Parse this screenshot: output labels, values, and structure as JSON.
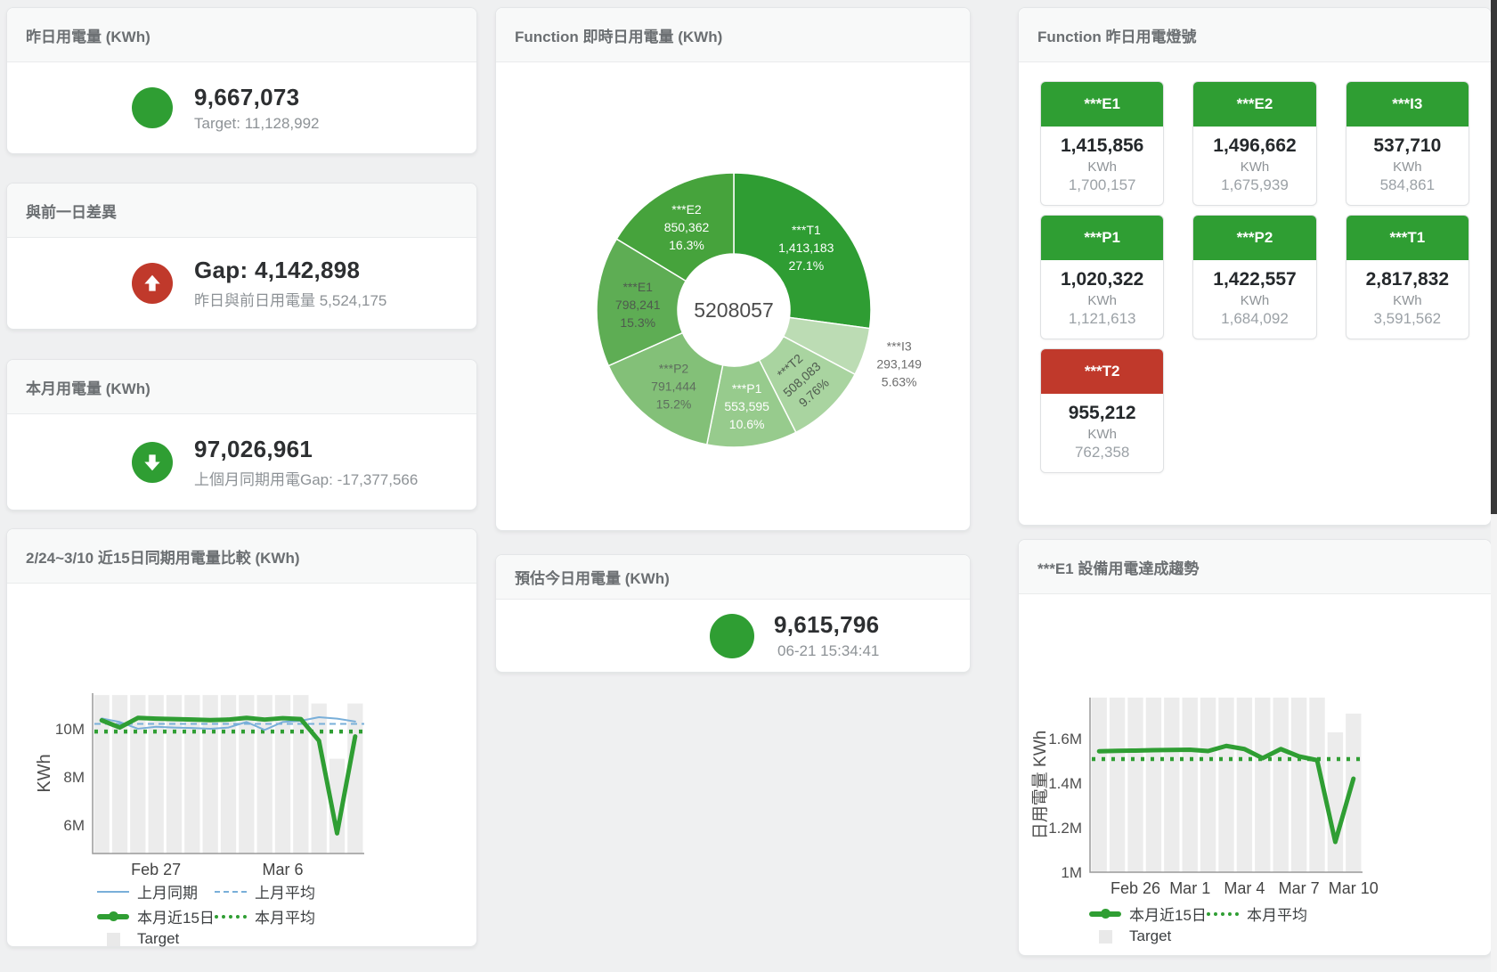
{
  "colors": {
    "green": "#2f9e33",
    "red": "#c0392b",
    "blue": "#79afd9",
    "bar_gray": "#ececec"
  },
  "kpis": {
    "yesterday": {
      "title": "昨日用電量 (KWh)",
      "value": "9,667,073",
      "subtitle": "Target: 11,128,992",
      "icon": "green-circle"
    },
    "diff": {
      "title": "與前一日差異",
      "value": "Gap: 4,142,898",
      "subtitle": "昨日與前日用電量 5,524,175",
      "icon": "red-circle-arrow-up"
    },
    "month": {
      "title": "本月用電量 (KWh)",
      "value": "97,026,961",
      "subtitle": "上個月同期用電Gap: -17,377,566",
      "icon": "green-circle-arrow-down"
    },
    "today_estimate": {
      "title": "預估今日用電量 (KWh)",
      "value": "9,615,796",
      "subtitle": "06-21 15:34:41",
      "icon": "green-circle"
    }
  },
  "lights_panel": {
    "title": "Function 昨日用電燈號",
    "unit": "KWh",
    "items": [
      {
        "label": "***E1",
        "value": "1,415,856",
        "target": "1,700,157",
        "status": "ok"
      },
      {
        "label": "***E2",
        "value": "1,496,662",
        "target": "1,675,939",
        "status": "ok"
      },
      {
        "label": "***I3",
        "value": "537,710",
        "target": "584,861",
        "status": "ok"
      },
      {
        "label": "***P1",
        "value": "1,020,322",
        "target": "1,121,613",
        "status": "ok"
      },
      {
        "label": "***P2",
        "value": "1,422,557",
        "target": "1,684,092",
        "status": "ok"
      },
      {
        "label": "***T1",
        "value": "2,817,832",
        "target": "3,591,562",
        "status": "ok"
      },
      {
        "label": "***T2",
        "value": "955,212",
        "target": "762,358",
        "status": "alert"
      }
    ]
  },
  "chart_data": [
    {
      "type": "pie",
      "title": "Function 即時日用電量 (KWh)",
      "center_label": "5208057",
      "center_total": 5208057,
      "slices": [
        {
          "name": "***T1",
          "value": 1413183,
          "value_label": "1,413,183",
          "pct_label": "27.1%",
          "color": "#2f9d33",
          "label_color": "#ffffff"
        },
        {
          "name": "***I3",
          "value": 293149,
          "value_label": "293,149",
          "pct_label": "5.63%",
          "color": "#bcdcb4",
          "label_color": "#6d6d6d",
          "outside": true
        },
        {
          "name": "***T2",
          "value": 508083,
          "value_label": "508,083",
          "pct_label": "9.76%",
          "color": "#a9d4a0",
          "label_color": "#4e5a4e",
          "rotate": -42
        },
        {
          "name": "***P1",
          "value": 553595,
          "value_label": "553,595",
          "pct_label": "10.6%",
          "color": "#97cb8d",
          "label_color": "#ffffff"
        },
        {
          "name": "***P2",
          "value": 791444,
          "value_label": "791,444",
          "pct_label": "15.2%",
          "color": "#83c078",
          "label_color": "#5e6e5e"
        },
        {
          "name": "***E1",
          "value": 798241,
          "value_label": "798,241",
          "pct_label": "15.3%",
          "color": "#5ead54",
          "label_color": "#4e5a4e"
        },
        {
          "name": "***E2",
          "value": 850362,
          "value_label": "850,362",
          "pct_label": "16.3%",
          "color": "#46a33c",
          "label_color": "#ffffff"
        }
      ]
    },
    {
      "type": "line",
      "title": "2/24~3/10 近15日同期用電量比較 (KWh)",
      "ylabel": "KWh",
      "unit": "M KWh",
      "categories": [
        "2/24",
        "2/25",
        "2/26",
        "2/27",
        "2/28",
        "3/1",
        "3/2",
        "3/3",
        "3/4",
        "3/5",
        "3/6",
        "3/7",
        "3/8",
        "3/9",
        "3/10"
      ],
      "ylim": [
        4.81,
        11.48
      ],
      "yticks": [
        {
          "v": 6,
          "label": "6M"
        },
        {
          "v": 8,
          "label": "8M"
        },
        {
          "v": 10,
          "label": "10M"
        }
      ],
      "xticks": [
        {
          "i": 3,
          "label": "Feb 27"
        },
        {
          "i": 10,
          "label": "Mar 6"
        }
      ],
      "series": [
        {
          "name": "Target",
          "type": "bar",
          "color": "#ececec",
          "values": [
            11.4,
            11.4,
            11.4,
            11.4,
            11.4,
            11.4,
            11.4,
            11.4,
            11.4,
            11.4,
            11.4,
            11.4,
            11.05,
            8.75,
            11.05
          ]
        },
        {
          "name": "上月同期",
          "type": "line",
          "style": "thin",
          "color": "#79afd9",
          "values": [
            10.43,
            10.28,
            10.0,
            10.08,
            10.05,
            10.03,
            10.0,
            10.05,
            10.28,
            9.95,
            10.28,
            10.33,
            10.48,
            10.42,
            10.3
          ]
        },
        {
          "name": "上月平均",
          "type": "avg-line",
          "style": "dashed",
          "color": "#79afd9",
          "value": 10.2
        },
        {
          "name": "本月近15日",
          "type": "line",
          "style": "thick",
          "color": "#2f9e33",
          "values": [
            10.35,
            10.05,
            10.45,
            10.42,
            10.4,
            10.38,
            10.36,
            10.38,
            10.45,
            10.38,
            10.44,
            10.4,
            9.5,
            5.65,
            9.68
          ]
        },
        {
          "name": "本月平均",
          "type": "avg-line",
          "style": "dotted",
          "color": "#2f9e33",
          "value": 9.88
        }
      ],
      "legend_rows": [
        [
          "上月同期",
          "上月平均"
        ],
        [
          "本月近15日",
          "本月平均"
        ],
        [
          "Target"
        ]
      ]
    },
    {
      "type": "line",
      "title": "***E1 設備用電達成趨勢",
      "ylabel": "日用電量 KWh",
      "unit": "M KWh",
      "categories": [
        "2/24",
        "2/25",
        "2/26",
        "2/27",
        "2/28",
        "3/1",
        "3/2",
        "3/3",
        "3/4",
        "3/5",
        "3/6",
        "3/7",
        "3/8",
        "3/9",
        "3/10"
      ],
      "ylim": [
        1.0,
        1.784
      ],
      "yticks": [
        {
          "v": 1,
          "label": "1M"
        },
        {
          "v": 1.2,
          "label": "1.2M"
        },
        {
          "v": 1.4,
          "label": "1.4M"
        },
        {
          "v": 1.6,
          "label": "1.6M"
        }
      ],
      "xticks": [
        {
          "i": 2,
          "label": "Feb 26"
        },
        {
          "i": 5,
          "label": "Mar 1"
        },
        {
          "i": 8,
          "label": "Mar 4"
        },
        {
          "i": 11,
          "label": "Mar 7"
        },
        {
          "i": 14,
          "label": "Mar 10"
        }
      ],
      "series": [
        {
          "name": "Target",
          "type": "bar",
          "color": "#ececec",
          "values": [
            1.784,
            1.784,
            1.784,
            1.784,
            1.784,
            1.784,
            1.784,
            1.784,
            1.784,
            1.784,
            1.784,
            1.784,
            1.784,
            1.628,
            1.712
          ]
        },
        {
          "name": "本月近15日",
          "type": "line",
          "style": "thick",
          "color": "#2f9e33",
          "values": [
            1.543,
            1.545,
            1.546,
            1.548,
            1.549,
            1.55,
            1.544,
            1.567,
            1.553,
            1.512,
            1.553,
            1.52,
            1.503,
            1.136,
            1.42
          ]
        },
        {
          "name": "本月平均",
          "type": "avg-line",
          "style": "dotted",
          "color": "#2f9e33",
          "value": 1.508
        }
      ],
      "legend_rows": [
        [
          "本月近15日",
          "本月平均"
        ],
        [
          "Target"
        ]
      ]
    }
  ]
}
